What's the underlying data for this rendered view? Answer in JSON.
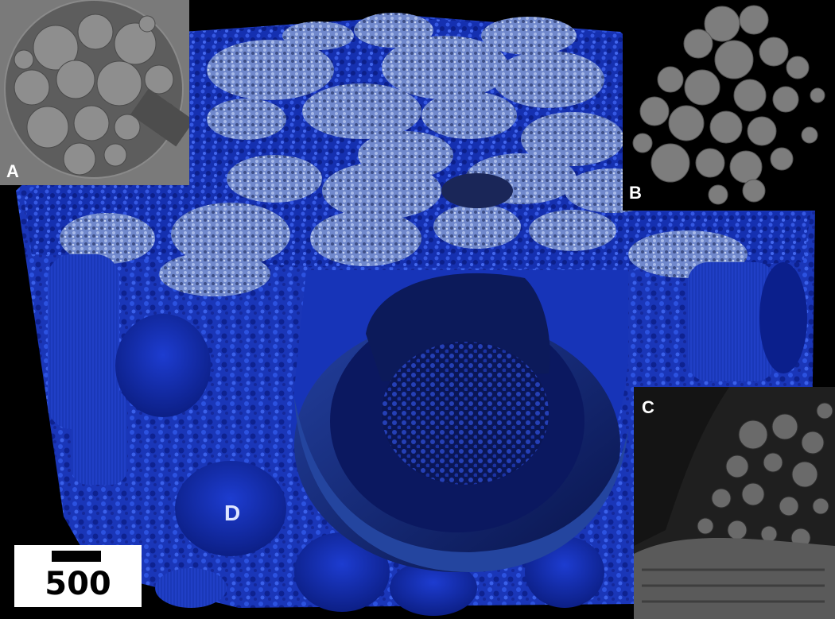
{
  "figure": {
    "panels": [
      {
        "letter": "A",
        "description_color": "#ffffff"
      },
      {
        "letter": "B",
        "description_color": "#ffffff"
      },
      {
        "letter": "C",
        "description_color": "#ffffff"
      },
      {
        "letter": "D",
        "description_color": "#dfe6ff"
      }
    ],
    "scale_bar_label": "500 µm"
  },
  "colors": {
    "background": "#000000",
    "render_blue_dark": "#0a1a6e",
    "render_blue": "#1f3fd6",
    "render_blue_light": "#8fa6e6",
    "inset_gray": "#7a7a7a",
    "inset_black": "#000000",
    "sem_gray": "#3a3a3a"
  }
}
